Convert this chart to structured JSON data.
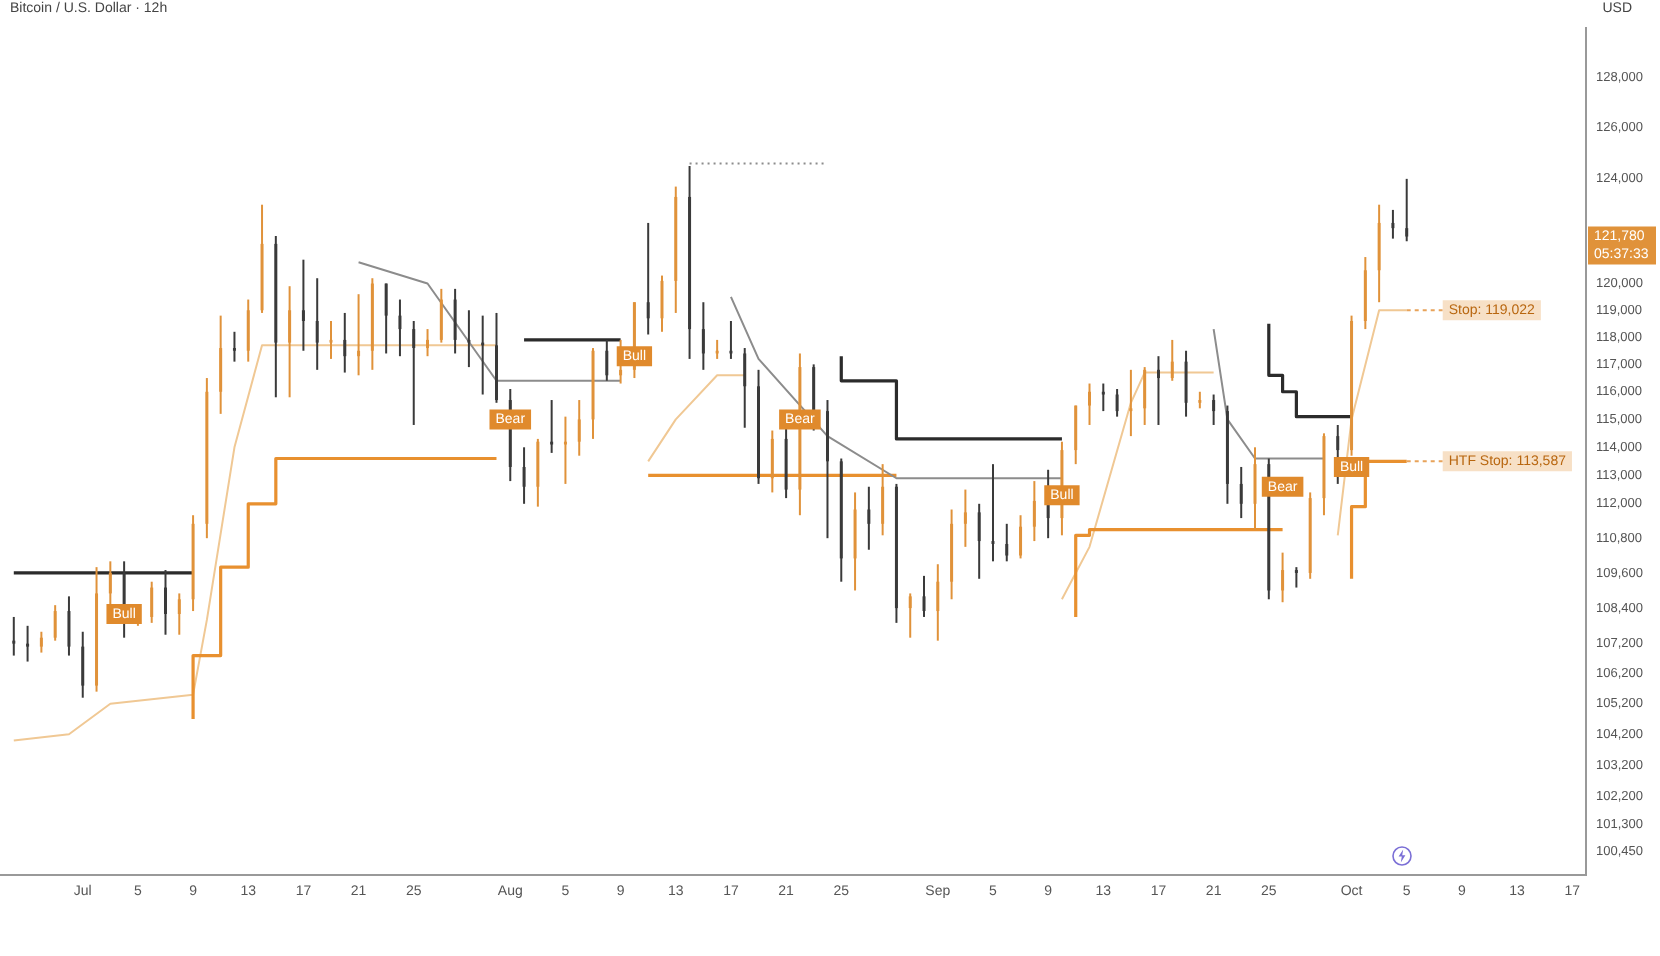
{
  "chart_data": {
    "type": "candlestick",
    "title": "Bitcoin / U.S. Dollar · 12h",
    "ylabel": "USD",
    "x": [
      "--06-26",
      "--06-27",
      "--06-28",
      "--06-29",
      "--06-30",
      "--07-01",
      "--07-02",
      "--07-03",
      "--07-04",
      "--07-05",
      "--07-06",
      "--07-07",
      "--07-08",
      "--07-09",
      "--07-10",
      "--07-11",
      "--07-12",
      "--07-13",
      "--07-14",
      "--07-15",
      "--07-16",
      "--07-17",
      "--07-18",
      "--07-19",
      "--07-20",
      "--07-21",
      "--07-22",
      "--07-23",
      "--07-24",
      "--07-25",
      "--07-26",
      "--07-27",
      "--07-28",
      "--07-29",
      "--07-30",
      "--07-31",
      "--08-01",
      "--08-02",
      "--08-03",
      "--08-04",
      "--08-05",
      "--08-06",
      "--08-07",
      "--08-08",
      "--08-09",
      "--08-10",
      "--08-11",
      "--08-12",
      "--08-13",
      "--08-14",
      "--08-15",
      "--08-16",
      "--08-17",
      "--08-18",
      "--08-19",
      "--08-20",
      "--08-21",
      "--08-22",
      "--08-23",
      "--08-24",
      "--08-25",
      "--08-26",
      "--08-27",
      "--08-28",
      "--08-29",
      "--08-30",
      "--08-31",
      "--09-01",
      "--09-02",
      "--09-03",
      "--09-04",
      "--09-05",
      "--09-06",
      "--09-07",
      "--09-08",
      "--09-09",
      "--09-10",
      "--09-11",
      "--09-12",
      "--09-13",
      "--09-14",
      "--09-15",
      "--09-16",
      "--09-17",
      "--09-18",
      "--09-19",
      "--09-20",
      "--09-21",
      "--09-22",
      "--09-23",
      "--09-24",
      "--09-25",
      "--09-26",
      "--09-27",
      "--09-28",
      "--09-29",
      "--09-30",
      "--10-01",
      "--10-02",
      "--10-03",
      "--10-04",
      "--10-05"
    ],
    "ohlc": [
      [
        107300,
        108100,
        106800,
        107200
      ],
      [
        107200,
        107800,
        106600,
        107100
      ],
      [
        107100,
        107600,
        106900,
        107400
      ],
      [
        107400,
        108500,
        107300,
        108300
      ],
      [
        108300,
        108800,
        106800,
        107100
      ],
      [
        107100,
        107600,
        105400,
        105800
      ],
      [
        105800,
        109800,
        105600,
        108900
      ],
      [
        108900,
        110000,
        108400,
        109600
      ],
      [
        109600,
        110000,
        107400,
        107900
      ],
      [
        107900,
        108400,
        107800,
        108100
      ],
      [
        108100,
        109300,
        107900,
        109100
      ],
      [
        109100,
        109700,
        107500,
        108200
      ],
      [
        108200,
        108900,
        107500,
        108700
      ],
      [
        108700,
        111600,
        108300,
        111300
      ],
      [
        111300,
        116500,
        110800,
        116000
      ],
      [
        116000,
        118800,
        115200,
        117600
      ],
      [
        117600,
        118200,
        117100,
        117500
      ],
      [
        117500,
        119400,
        117100,
        119000
      ],
      [
        119000,
        123000,
        118900,
        121500
      ],
      [
        121500,
        121800,
        115800,
        117800
      ],
      [
        117800,
        119900,
        115800,
        119000
      ],
      [
        119000,
        120900,
        117500,
        118600
      ],
      [
        118600,
        120200,
        116800,
        117800
      ],
      [
        117800,
        118600,
        117200,
        117900
      ],
      [
        117900,
        118900,
        116700,
        117300
      ],
      [
        117300,
        119600,
        116600,
        117500
      ],
      [
        117500,
        120200,
        116800,
        120000
      ],
      [
        120000,
        120000,
        117400,
        118800
      ],
      [
        118800,
        119400,
        117300,
        118300
      ],
      [
        118300,
        118600,
        114800,
        117600
      ],
      [
        117600,
        118300,
        117300,
        117900
      ],
      [
        117900,
        119800,
        117800,
        119400
      ],
      [
        119400,
        119800,
        117400,
        117900
      ],
      [
        117900,
        119000,
        116900,
        117800
      ],
      [
        117800,
        118800,
        115900,
        117700
      ],
      [
        117700,
        118900,
        115600,
        115700
      ],
      [
        115700,
        116100,
        112800,
        113300
      ],
      [
        113300,
        114000,
        112000,
        112600
      ],
      [
        112600,
        114300,
        111900,
        114200
      ],
      [
        114200,
        115700,
        113800,
        114100
      ],
      [
        114100,
        115100,
        112700,
        114200
      ],
      [
        114200,
        115700,
        113700,
        115000
      ],
      [
        115000,
        117600,
        114300,
        117500
      ],
      [
        117500,
        117900,
        116400,
        116600
      ],
      [
        116600,
        117900,
        116300,
        116800
      ],
      [
        116800,
        119300,
        116500,
        119300
      ],
      [
        119300,
        122300,
        118100,
        118700
      ],
      [
        118700,
        120300,
        118200,
        120100
      ],
      [
        120100,
        123700,
        118900,
        123300
      ],
      [
        123300,
        124500,
        117200,
        118300
      ],
      [
        118300,
        119300,
        116800,
        117400
      ],
      [
        117400,
        117900,
        117200,
        117500
      ],
      [
        117500,
        118600,
        117200,
        117400
      ],
      [
        117400,
        117600,
        114700,
        116200
      ],
      [
        116200,
        116800,
        112700,
        112900
      ],
      [
        112900,
        114600,
        112400,
        114300
      ],
      [
        114300,
        114700,
        112200,
        112500
      ],
      [
        112500,
        117400,
        111600,
        116900
      ],
      [
        116900,
        117000,
        114600,
        115300
      ],
      [
        115300,
        115700,
        110800,
        113500
      ],
      [
        113500,
        113600,
        109300,
        110100
      ],
      [
        110100,
        112400,
        109000,
        111800
      ],
      [
        111800,
        112600,
        110400,
        111300
      ],
      [
        111300,
        113400,
        110900,
        112600
      ],
      [
        112600,
        112700,
        107900,
        108400
      ],
      [
        108400,
        108900,
        107400,
        108800
      ],
      [
        108800,
        109500,
        108100,
        108300
      ],
      [
        108300,
        109900,
        107300,
        109300
      ],
      [
        109300,
        111800,
        108700,
        111300
      ],
      [
        111300,
        112500,
        110500,
        111700
      ],
      [
        111700,
        112000,
        109400,
        110700
      ],
      [
        110700,
        113400,
        110000,
        110600
      ],
      [
        110600,
        111300,
        110000,
        110200
      ],
      [
        110200,
        111600,
        110100,
        111200
      ],
      [
        111200,
        112800,
        110700,
        112100
      ],
      [
        112100,
        113200,
        110800,
        111500
      ],
      [
        111500,
        114200,
        110900,
        113900
      ],
      [
        113900,
        115500,
        113400,
        115500
      ],
      [
        115500,
        116300,
        114800,
        116000
      ],
      [
        116000,
        116300,
        115300,
        115900
      ],
      [
        115900,
        116100,
        115100,
        115300
      ],
      [
        115300,
        116800,
        114400,
        115400
      ],
      [
        115400,
        116900,
        114800,
        116800
      ],
      [
        116800,
        117300,
        114800,
        116500
      ],
      [
        116500,
        117900,
        116400,
        117100
      ],
      [
        117100,
        117500,
        115100,
        115600
      ],
      [
        115600,
        116000,
        115400,
        115700
      ],
      [
        115700,
        115900,
        114800,
        115300
      ],
      [
        115300,
        115500,
        112000,
        112700
      ],
      [
        112700,
        113300,
        111500,
        112000
      ],
      [
        112000,
        114000,
        111100,
        113400
      ],
      [
        113400,
        113600,
        108700,
        109000
      ],
      [
        109000,
        110300,
        108600,
        109700
      ],
      [
        109700,
        109800,
        109100,
        109600
      ],
      [
        109600,
        112400,
        109400,
        112200
      ],
      [
        112200,
        114500,
        111600,
        114400
      ],
      [
        114400,
        114800,
        112700,
        113900
      ],
      [
        113900,
        118800,
        113700,
        118600
      ],
      [
        118600,
        121000,
        118300,
        120500
      ],
      [
        120500,
        123000,
        119300,
        122300
      ],
      [
        122300,
        122800,
        121700,
        122100
      ],
      [
        122100,
        124000,
        121600,
        121780
      ]
    ],
    "colors": [
      "#3a3a3a",
      "#3a3a3a",
      "#e0923a",
      "#e0923a",
      "#3a3a3a",
      "#3a3a3a",
      "#e0923a",
      "#e0923a",
      "#3a3a3a",
      "#e0923a",
      "#e0923a",
      "#3a3a3a",
      "#e0923a",
      "#e0923a",
      "#e0923a",
      "#e0923a",
      "#3a3a3a",
      "#e0923a",
      "#e0923a",
      "#3a3a3a",
      "#e0923a",
      "#3a3a3a",
      "#3a3a3a",
      "#e0923a",
      "#3a3a3a",
      "#e0923a",
      "#e0923a",
      "#3a3a3a",
      "#3a3a3a",
      "#3a3a3a",
      "#e0923a",
      "#e0923a",
      "#3a3a3a",
      "#3a3a3a",
      "#3a3a3a",
      "#3a3a3a",
      "#3a3a3a",
      "#3a3a3a",
      "#e0923a",
      "#3a3a3a",
      "#e0923a",
      "#e0923a",
      "#e0923a",
      "#3a3a3a",
      "#e0923a",
      "#e0923a",
      "#3a3a3a",
      "#e0923a",
      "#e0923a",
      "#3a3a3a",
      "#3a3a3a",
      "#e0923a",
      "#3a3a3a",
      "#3a3a3a",
      "#3a3a3a",
      "#e0923a",
      "#3a3a3a",
      "#e0923a",
      "#3a3a3a",
      "#3a3a3a",
      "#3a3a3a",
      "#e0923a",
      "#3a3a3a",
      "#e0923a",
      "#3a3a3a",
      "#e0923a",
      "#3a3a3a",
      "#e0923a",
      "#e0923a",
      "#e0923a",
      "#3a3a3a",
      "#3a3a3a",
      "#3a3a3a",
      "#e0923a",
      "#e0923a",
      "#3a3a3a",
      "#e0923a",
      "#e0923a",
      "#e0923a",
      "#3a3a3a",
      "#3a3a3a",
      "#e0923a",
      "#e0923a",
      "#3a3a3a",
      "#e0923a",
      "#3a3a3a",
      "#e0923a",
      "#3a3a3a",
      "#3a3a3a",
      "#3a3a3a",
      "#e0923a",
      "#3a3a3a",
      "#e0923a",
      "#3a3a3a",
      "#e0923a",
      "#e0923a",
      "#3a3a3a",
      "#e0923a",
      "#e0923a",
      "#e0923a",
      "#3a3a3a",
      "#3a3a3a"
    ],
    "series": [
      {
        "type": "step",
        "color": "#2b2b2b",
        "x": [
          "--06-26",
          "--07-09",
          "--07-10",
          "--08-02",
          "--08-09",
          "--08-10",
          "--08-25",
          "--08-26",
          "--08-29",
          "--08-30",
          "--09-10",
          "--09-11",
          "--09-25",
          "--09-26",
          "--09-27",
          "--09-29",
          "--10-01"
        ],
        "values": [
          109600,
          109600,
          null,
          117900,
          117900,
          null,
          117300,
          116400,
          116400,
          114300,
          114300,
          null,
          118500,
          116600,
          116000,
          115100,
          115100
        ]
      },
      {
        "type": "line",
        "color": "#8c8c8c",
        "x": [
          "--07-21",
          "--07-26",
          "--07-31",
          "--08-09",
          "--08-10",
          "--08-17",
          "--08-19",
          "--08-24",
          "--08-29",
          "--09-10",
          "--09-11",
          "--09-21",
          "--09-22",
          "--09-24",
          "--09-29"
        ],
        "values": [
          120800,
          120000,
          116400,
          116400,
          null,
          119500,
          117200,
          114400,
          112900,
          112900,
          null,
          118300,
          115000,
          113600,
          113600
        ]
      },
      {
        "type": "line",
        "color": "#8c8c8c",
        "line_style": "dotted",
        "x": [
          "--08-14",
          "--08-24"
        ],
        "values": [
          124600,
          124600
        ]
      },
      {
        "type": "step",
        "color": "#e8902f",
        "x": [
          "--07-09",
          "--07-11",
          "--07-13",
          "--07-15",
          "--07-17",
          "--07-31",
          "--08-01",
          "--08-11",
          "--08-29",
          "--08-30",
          "--09-11",
          "--09-12",
          "--09-26",
          "--09-27",
          "--10-01",
          "--10-02",
          "--10-03",
          "--10-05"
        ],
        "values": [
          104700,
          106800,
          109800,
          112000,
          113600,
          113600,
          null,
          113000,
          113000,
          null,
          108100,
          110900,
          111100,
          null,
          109400,
          111900,
          113500,
          113500
        ]
      },
      {
        "type": "line",
        "color": "#f0c894",
        "x": [
          "--06-26",
          "--06-30",
          "--07-03",
          "--07-09",
          "--07-10",
          "--07-12",
          "--07-14",
          "--07-31",
          "--08-01",
          "--08-11",
          "--08-13",
          "--08-16",
          "--08-18",
          "--08-19",
          "--09-10",
          "--09-12",
          "--09-15",
          "--09-16",
          "--09-21",
          "--09-22",
          "--09-30",
          "--10-01",
          "--10-03",
          "--10-05"
        ],
        "values": [
          104000,
          104200,
          105200,
          105500,
          108000,
          114000,
          117700,
          117700,
          null,
          113500,
          115000,
          116600,
          116600,
          null,
          108700,
          110500,
          115600,
          116700,
          116700,
          null,
          110900,
          115000,
          119000,
          119000
        ]
      }
    ],
    "xlim": [
      "--06-25",
      "--10-18"
    ],
    "xticks": [
      {
        "value": "--07-01",
        "label": "Jul"
      },
      {
        "value": "--07-05",
        "label": "5"
      },
      {
        "value": "--07-09",
        "label": "9"
      },
      {
        "value": "--07-13",
        "label": "13"
      },
      {
        "value": "--07-17",
        "label": "17"
      },
      {
        "value": "--07-21",
        "label": "21"
      },
      {
        "value": "--07-25",
        "label": "25"
      },
      {
        "value": "--08-01",
        "label": "Aug"
      },
      {
        "value": "--08-05",
        "label": "5"
      },
      {
        "value": "--08-09",
        "label": "9"
      },
      {
        "value": "--08-13",
        "label": "13"
      },
      {
        "value": "--08-17",
        "label": "17"
      },
      {
        "value": "--08-21",
        "label": "21"
      },
      {
        "value": "--08-25",
        "label": "25"
      },
      {
        "value": "--09-01",
        "label": "Sep"
      },
      {
        "value": "--09-05",
        "label": "5"
      },
      {
        "value": "--09-09",
        "label": "9"
      },
      {
        "value": "--09-13",
        "label": "13"
      },
      {
        "value": "--09-17",
        "label": "17"
      },
      {
        "value": "--09-21",
        "label": "21"
      },
      {
        "value": "--09-25",
        "label": "25"
      },
      {
        "value": "--10-01",
        "label": "Oct"
      },
      {
        "value": "--10-05",
        "label": "5"
      },
      {
        "value": "--10-09",
        "label": "9"
      },
      {
        "value": "--10-13",
        "label": "13"
      },
      {
        "value": "--10-17",
        "label": "17"
      }
    ],
    "ylim": [
      99700,
      130000
    ],
    "yticks": [
      {
        "value": 100450,
        "label": "100,450"
      },
      {
        "value": 101300,
        "label": "101,300"
      },
      {
        "value": 102200,
        "label": "102,200"
      },
      {
        "value": 103200,
        "label": "103,200"
      },
      {
        "value": 104200,
        "label": "104,200"
      },
      {
        "value": 105200,
        "label": "105,200"
      },
      {
        "value": 106200,
        "label": "106,200"
      },
      {
        "value": 107200,
        "label": "107,200"
      },
      {
        "value": 108400,
        "label": "108,400"
      },
      {
        "value": 109600,
        "label": "109,600"
      },
      {
        "value": 110800,
        "label": "110,800"
      },
      {
        "value": 112000,
        "label": "112,000"
      },
      {
        "value": 113000,
        "label": "113,000"
      },
      {
        "value": 114000,
        "label": "114,000"
      },
      {
        "value": 115000,
        "label": "115,000"
      },
      {
        "value": 116000,
        "label": "116,000"
      },
      {
        "value": 117000,
        "label": "117,000"
      },
      {
        "value": 118000,
        "label": "118,000"
      },
      {
        "value": 119000,
        "label": "119,000"
      },
      {
        "value": 120000,
        "label": "120,000"
      },
      {
        "value": 124000,
        "label": "124,000"
      },
      {
        "value": 126000,
        "label": "126,000"
      },
      {
        "value": 128000,
        "label": "128,000"
      }
    ],
    "log": true,
    "grid": false,
    "legend": false,
    "annotations": [
      "121,780",
      "05:37:33",
      {
        "text": "Bull",
        "x": "--07-04",
        "y": 108200
      },
      {
        "text": "Bear",
        "x": "--08-01",
        "y": 115000
      },
      {
        "text": "Bull",
        "x": "--08-10",
        "y": 117300
      },
      {
        "text": "Bear",
        "x": "--08-22",
        "y": 115000
      },
      {
        "text": "Bull",
        "x": "--09-10",
        "y": 112300
      },
      {
        "text": "Bear",
        "x": "--09-26",
        "y": 112600
      },
      {
        "text": "Bull",
        "x": "--10-01",
        "y": 113300
      },
      {
        "text": "Stop: 119,022",
        "x": "--10-05",
        "y": 119000
      },
      {
        "text": "HTF Stop: 113,587",
        "x": "--10-05",
        "y": 113500
      }
    ]
  }
}
